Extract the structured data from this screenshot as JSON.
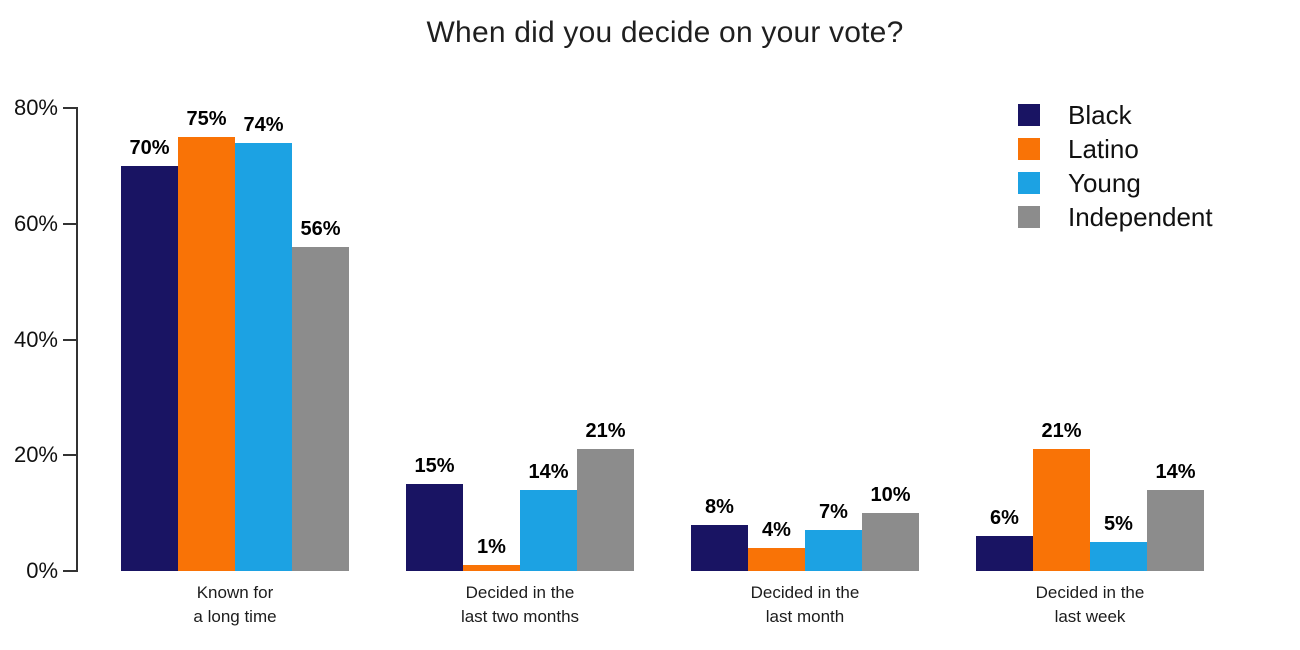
{
  "page": {
    "background_color": "#ffffff"
  },
  "chart_data": {
    "type": "bar",
    "title": "When did you decide on your vote?",
    "categories": [
      [
        "Known for",
        "a long time"
      ],
      [
        "Decided in the",
        "last two months"
      ],
      [
        "Decided in the",
        "last month"
      ],
      [
        "Decided in the",
        "last week"
      ]
    ],
    "series": [
      {
        "name": "Black",
        "color": "#191463",
        "values": [
          70,
          15,
          8,
          6
        ]
      },
      {
        "name": "Latino",
        "color": "#F97306",
        "values": [
          75,
          1,
          4,
          21
        ]
      },
      {
        "name": "Young",
        "color": "#1CA2E3",
        "values": [
          74,
          14,
          7,
          5
        ]
      },
      {
        "name": "Independent",
        "color": "#8C8C8C",
        "values": [
          56,
          21,
          10,
          14
        ]
      }
    ],
    "xlabel": "",
    "ylabel": "",
    "ylim": [
      0,
      80
    ],
    "yticks": [
      {
        "value": 0,
        "label": "0%"
      },
      {
        "value": 20,
        "label": "20%"
      },
      {
        "value": 40,
        "label": "40%"
      },
      {
        "value": 60,
        "label": "60%"
      },
      {
        "value": 80,
        "label": "80%"
      }
    ],
    "grid": false,
    "legend_position": "upper right",
    "value_label_suffix": "%",
    "axis_color": "#333333",
    "value_label_color": "#000000"
  }
}
